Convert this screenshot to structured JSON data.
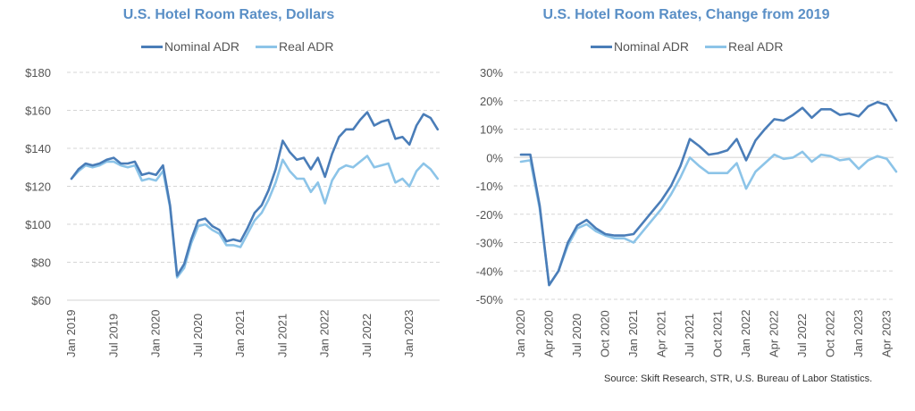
{
  "colors": {
    "nominal": "#4a7db8",
    "real": "#8cc4e8",
    "title": "#5a8fc6",
    "grid": "#d5d5d5"
  },
  "source": "Source: Skift Research, STR, U.S. Bureau of Labor Statistics.",
  "chart_data": [
    {
      "type": "line",
      "title": "U.S. Hotel Room Rates, Dollars",
      "xlabel": "",
      "ylabel": "",
      "ylim": [
        60,
        180
      ],
      "yticks": [
        60,
        80,
        100,
        120,
        140,
        160,
        180
      ],
      "ytick_labels": [
        "$60",
        "$80",
        "$100",
        "$120",
        "$140",
        "$160",
        "$180"
      ],
      "x_start": "Jan 2019",
      "xtick_labels": [
        "Jan 2019",
        "Jul 2019",
        "Jan 2020",
        "Jul 2020",
        "Jan 2021",
        "Jul 2021",
        "Jan 2022",
        "Jul 2022",
        "Jan 2023"
      ],
      "xtick_month_index": [
        0,
        6,
        12,
        18,
        24,
        30,
        36,
        42,
        48
      ],
      "grid": true,
      "legend": "top-center",
      "series": [
        {
          "name": "Nominal ADR",
          "values": [
            124,
            129,
            132,
            131,
            132,
            134,
            135,
            132,
            132,
            133,
            126,
            127,
            126,
            131,
            110,
            73,
            79,
            92,
            102,
            103,
            99,
            97,
            91,
            92,
            91,
            98,
            106,
            110,
            118,
            129,
            144,
            138,
            134,
            135,
            129,
            135,
            125,
            137,
            146,
            150,
            150,
            155,
            159,
            152,
            154,
            155,
            145,
            146,
            142,
            152,
            158,
            156,
            150
          ]
        },
        {
          "name": "Real ADR",
          "values": [
            124,
            128,
            131,
            130,
            131,
            133,
            133,
            131,
            130,
            131,
            123,
            124,
            123,
            128,
            109,
            72,
            77,
            90,
            99,
            100,
            97,
            95,
            89,
            89,
            88,
            95,
            102,
            106,
            113,
            122,
            134,
            128,
            124,
            124,
            117,
            122,
            111,
            123,
            129,
            131,
            130,
            133,
            136,
            130,
            131,
            132,
            122,
            124,
            120,
            128,
            132,
            129,
            124
          ]
        }
      ]
    },
    {
      "type": "line",
      "title": "U.S. Hotel Room Rates, Change from 2019",
      "xlabel": "",
      "ylabel": "",
      "ylim": [
        -50,
        30
      ],
      "yticks": [
        -50,
        -40,
        -30,
        -20,
        -10,
        0,
        10,
        20,
        30
      ],
      "ytick_labels": [
        "-50%",
        "-40%",
        "-30%",
        "-20%",
        "-10%",
        "0%",
        "10%",
        "20%",
        "30%"
      ],
      "x_start": "Jan 2020",
      "xtick_labels": [
        "Jan 2020",
        "Apr 2020",
        "Jul 2020",
        "Oct 2020",
        "Jan 2021",
        "Apr 2021",
        "Jul 2021",
        "Oct 2021",
        "Jan 2022",
        "Apr 2022",
        "Jul 2022",
        "Oct 2022",
        "Jan 2023",
        "Apr 2023"
      ],
      "xtick_month_index": [
        0,
        3,
        6,
        9,
        12,
        15,
        18,
        21,
        24,
        27,
        30,
        33,
        36,
        39
      ],
      "grid": true,
      "legend": "top-center",
      "series": [
        {
          "name": "Nominal ADR",
          "values": [
            1,
            1,
            -17,
            -45,
            -40,
            -30,
            -24,
            -22,
            -25,
            -27,
            -27.5,
            -27.5,
            -27,
            -23,
            -19,
            -15,
            -10,
            -3,
            6.5,
            4,
            1,
            1.5,
            2.5,
            6.5,
            -1,
            6,
            10,
            13.5,
            13,
            15,
            17.5,
            14,
            17,
            17,
            15,
            15.5,
            14.5,
            18,
            19.5,
            18.5,
            13
          ]
        },
        {
          "name": "Real ADR",
          "values": [
            -1.5,
            -1,
            -18,
            -45,
            -40,
            -31,
            -25,
            -23.5,
            -26,
            -27.5,
            -28.5,
            -28.5,
            -30,
            -26,
            -22,
            -18,
            -13,
            -7,
            0,
            -3,
            -5.5,
            -5.5,
            -5.5,
            -2,
            -11,
            -5,
            -2,
            1,
            -0.5,
            0,
            2,
            -1.5,
            1,
            0.5,
            -1,
            -0.5,
            -4,
            -1,
            0.5,
            -0.5,
            -5
          ]
        }
      ]
    }
  ]
}
